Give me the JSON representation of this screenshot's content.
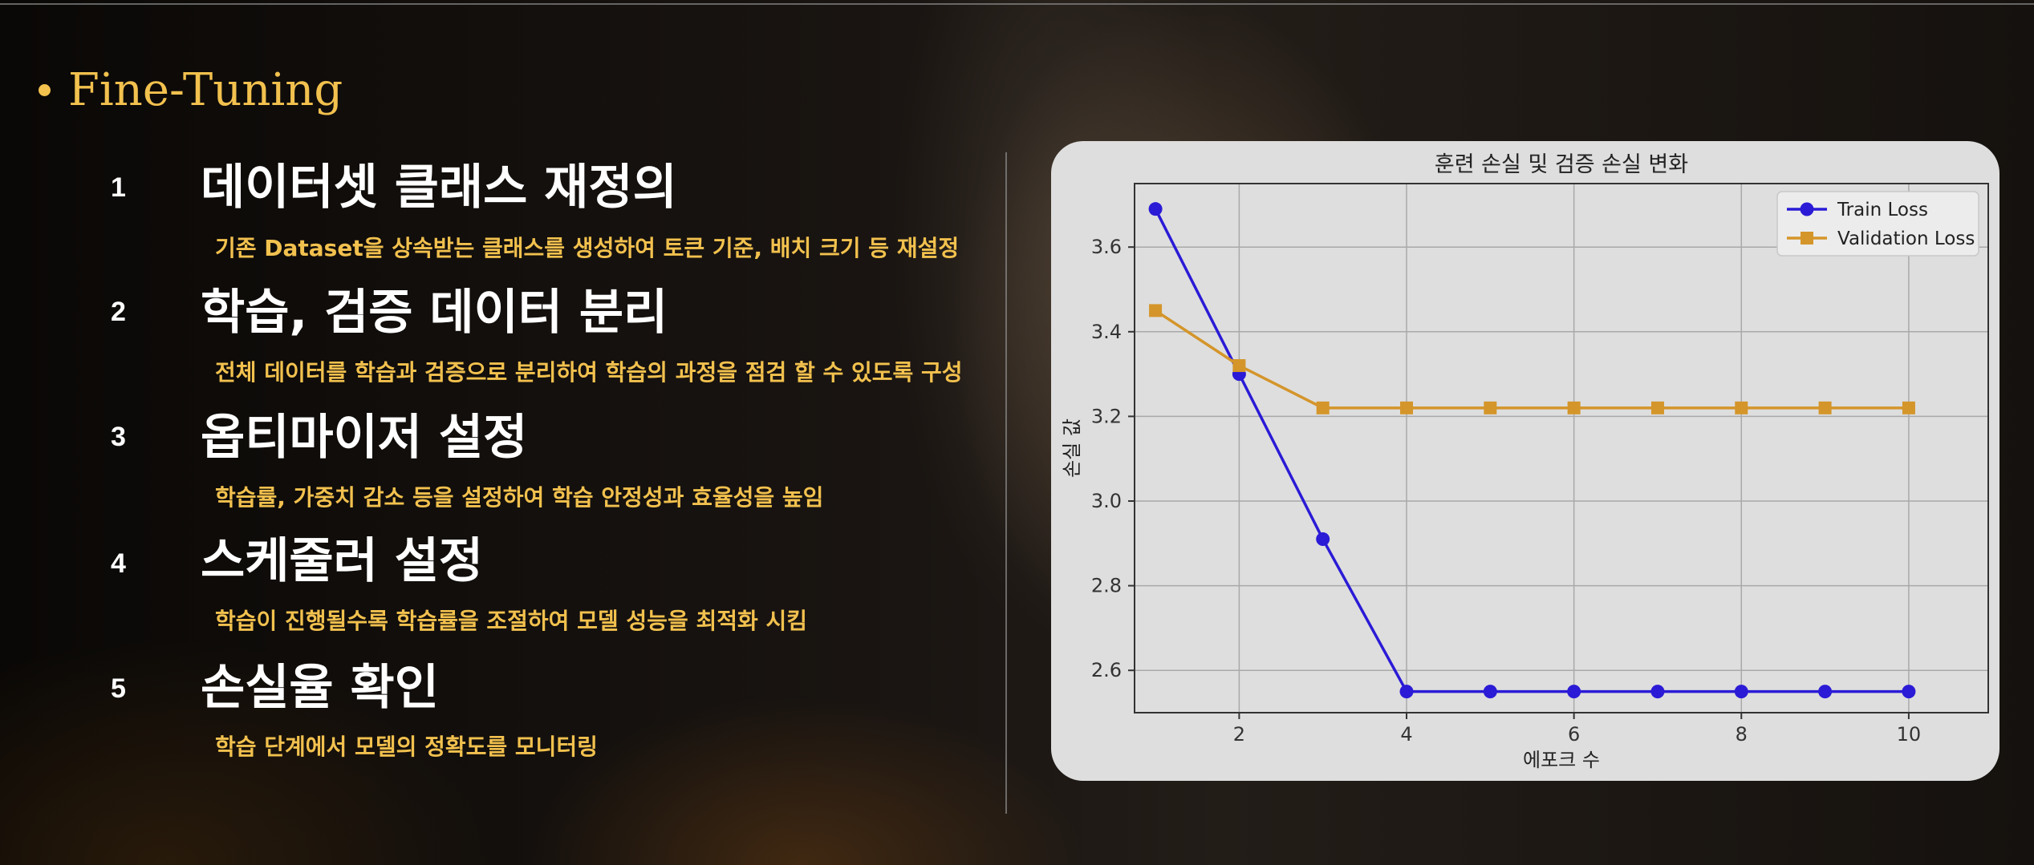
{
  "slide": {
    "heading": "Fine-Tuning",
    "items": [
      {
        "num": "1",
        "title": "데이터셋 클래스 재정의",
        "desc": "기존 Dataset을 상속받는 클래스를 생성하여 토큰 기준, 배치 크기 등 재설정"
      },
      {
        "num": "2",
        "title": "학습, 검증 데이터 분리",
        "desc": "전체 데이터를 학습과 검증으로 분리하여 학습의 과정을 점검 할 수 있도록 구성"
      },
      {
        "num": "3",
        "title": "옵티마이저 설정",
        "desc": "학습률, 가중치 감소 등을 설정하여 학습 안정성과 효율성을 높임"
      },
      {
        "num": "4",
        "title": "스케줄러 설정",
        "desc": "학습이 진행될수록 학습률을 조절하여 모델 성능을 최적화 시킴"
      },
      {
        "num": "5",
        "title": "손실율 확인",
        "desc": "학습 단계에서 모델의 정확도를 모니터링"
      }
    ]
  },
  "colors": {
    "accent": "#f2c14e",
    "train": "#2b1bd6",
    "validation": "#d4952a"
  },
  "chart_data": {
    "type": "line",
    "title": "훈련 손실 및 검증 손실 변화",
    "xlabel": "에포크 수",
    "ylabel": "손실 값",
    "x": [
      1,
      2,
      3,
      4,
      5,
      6,
      7,
      8,
      9,
      10
    ],
    "xticks": [
      2,
      4,
      6,
      8,
      10
    ],
    "yticks": [
      2.6,
      2.8,
      3.0,
      3.2,
      3.4,
      3.6
    ],
    "xlim": [
      0.75,
      10.95
    ],
    "ylim": [
      2.5,
      3.75
    ],
    "grid": true,
    "legend": "top-right",
    "series": [
      {
        "name": "Train Loss",
        "marker": "circle",
        "values": [
          3.69,
          3.3,
          2.91,
          2.55,
          2.55,
          2.55,
          2.55,
          2.55,
          2.55,
          2.55
        ]
      },
      {
        "name": "Validation Loss",
        "marker": "square",
        "values": [
          3.45,
          3.32,
          3.22,
          3.22,
          3.22,
          3.22,
          3.22,
          3.22,
          3.22,
          3.22
        ]
      }
    ]
  }
}
